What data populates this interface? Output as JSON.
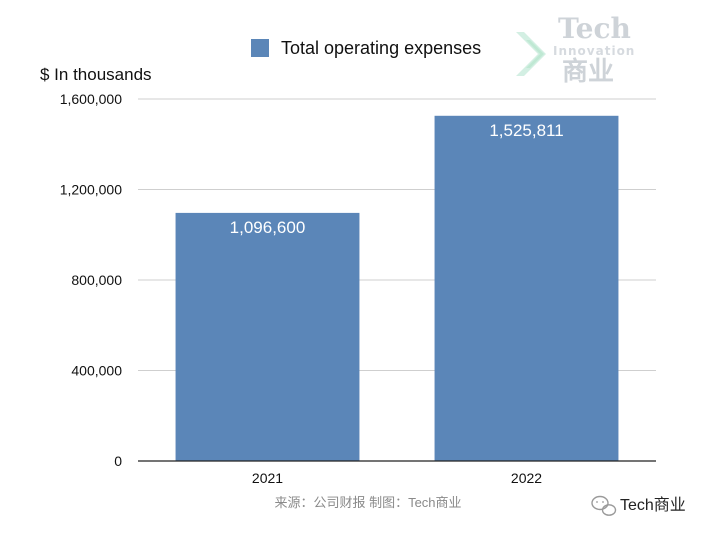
{
  "chart_data": {
    "type": "bar",
    "categories": [
      "2021",
      "2022"
    ],
    "series": [
      {
        "name": "Total operating expenses",
        "values": [
          1096600,
          1525811
        ]
      }
    ],
    "value_labels": [
      "1,096,600",
      "1,525,811"
    ],
    "ylabel": "$ In thousands",
    "xlabel": "",
    "ylim": [
      0,
      1600000
    ],
    "yticks": [
      0,
      400000,
      800000,
      1200000,
      1600000
    ],
    "ytick_labels": [
      "0",
      "400,000",
      "800,000",
      "1,200,000",
      "1,600,000"
    ],
    "grid": true,
    "legend": "top-center",
    "bar_color": "#5b86b8"
  },
  "source_note": "来源：公司财报 制图：Tech商业",
  "watermark": {
    "line1": "Tech",
    "line2": "Innovation",
    "line3": "商业"
  },
  "brand": {
    "icon": "wechat-icon",
    "name": "Tech商业"
  }
}
